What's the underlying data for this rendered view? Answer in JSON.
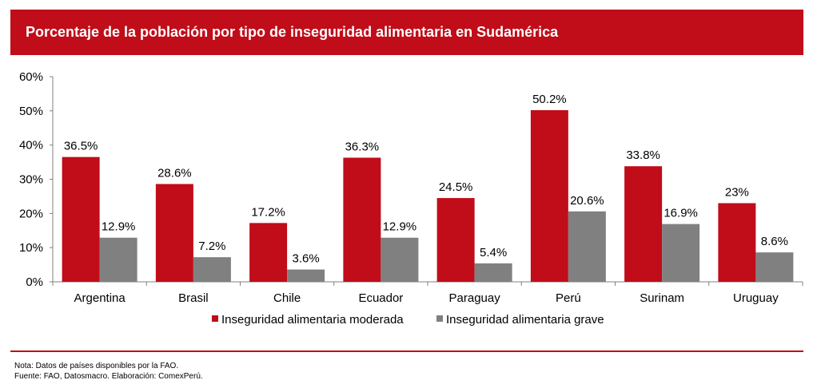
{
  "header": {
    "title": "Porcentaje de la población por tipo de inseguridad alimentaria en Sudamérica"
  },
  "colors": {
    "brand": "#c00d19",
    "moderada": "#c00d19",
    "grave": "#808080"
  },
  "chart_data": {
    "type": "bar",
    "title": "Porcentaje de la población por tipo de inseguridad alimentaria en Sudamérica",
    "categories": [
      "Argentina",
      "Brasil",
      "Chile",
      "Ecuador",
      "Paraguay",
      "Perú",
      "Surinam",
      "Uruguay"
    ],
    "series": [
      {
        "name": "Inseguridad alimentaria moderada",
        "values": [
          36.5,
          28.6,
          17.2,
          36.3,
          24.5,
          50.2,
          33.8,
          23.0
        ],
        "labels": [
          "36.5%",
          "28.6%",
          "17.2%",
          "36.3%",
          "24.5%",
          "50.2%",
          "33.8%",
          "23%"
        ]
      },
      {
        "name": "Inseguridad alimentaria grave",
        "values": [
          12.9,
          7.2,
          3.6,
          12.9,
          5.4,
          20.6,
          16.9,
          8.6
        ],
        "labels": [
          "12.9%",
          "7.2%",
          "3.6%",
          "12.9%",
          "5.4%",
          "20.6%",
          "16.9%",
          "8.6%"
        ]
      }
    ],
    "ylim": [
      0,
      60
    ],
    "yticks": [
      "0%",
      "10%",
      "20%",
      "30%",
      "40%",
      "50%",
      "60%"
    ],
    "xlabel": "",
    "ylabel": "",
    "legend_position": "bottom"
  },
  "footer": {
    "note": "Nota: Datos de países disponibles por la FAO.",
    "source": "Fuente: FAO, Datosmacro. Elaboración: ComexPerú."
  }
}
